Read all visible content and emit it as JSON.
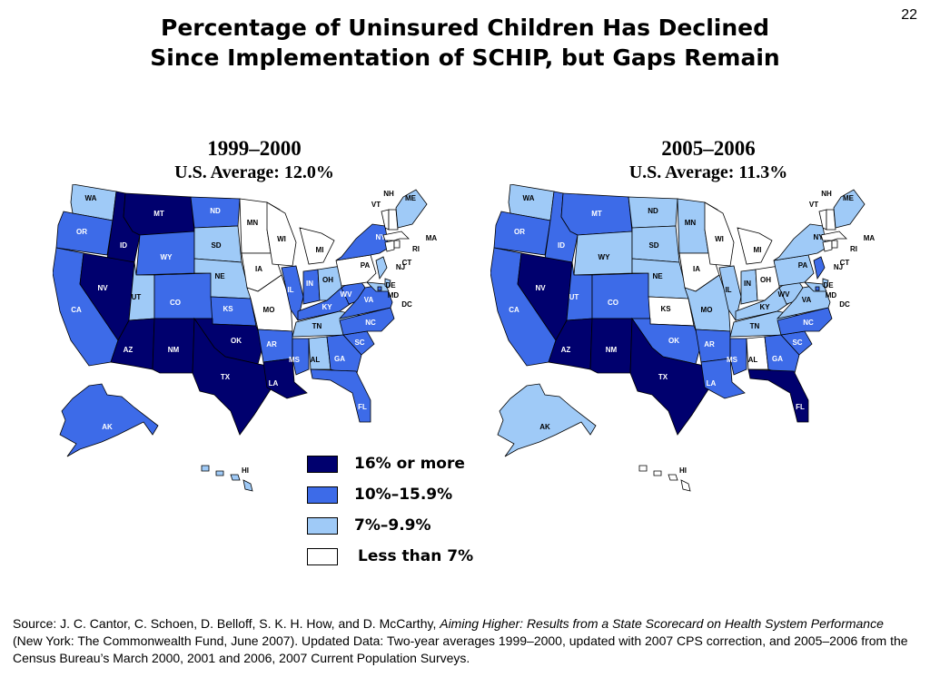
{
  "page_number": "22",
  "title": {
    "line1": "Percentage of Uninsured Children Has Declined",
    "line2": "Since Implementation of SCHIP, but Gaps Remain"
  },
  "colors": {
    "c16": "#00006e",
    "c10": "#3d6be8",
    "c7": "#9fcaf7",
    "c0": "#ffffff"
  },
  "legend": [
    {
      "key": "c16",
      "label": "16% or more"
    },
    {
      "key": "c10",
      "label": "10%–15.9%"
    },
    {
      "key": "c7",
      "label": "7%–9.9%"
    },
    {
      "key": "c0",
      "label": "Less than 7%"
    }
  ],
  "maps": [
    {
      "period": "1999–2000",
      "average": "U.S. Average: 12.0%",
      "states": {
        "WA": "c7",
        "OR": "c10",
        "CA": "c10",
        "ID": "c16",
        "NV": "c16",
        "MT": "c16",
        "WY": "c10",
        "UT": "c7",
        "AZ": "c16",
        "CO": "c10",
        "NM": "c16",
        "ND": "c10",
        "SD": "c7",
        "NE": "c7",
        "KS": "c10",
        "OK": "c16",
        "TX": "c16",
        "MN": "c0",
        "IA": "c0",
        "MO": "c0",
        "AR": "c10",
        "LA": "c16",
        "WI": "c0",
        "IL": "c10",
        "MS": "c10",
        "MI": "c0",
        "IN": "c10",
        "OH": "c7",
        "KY": "c10",
        "TN": "c7",
        "AL": "c7",
        "GA": "c10",
        "FL": "c10",
        "SC": "c10",
        "NC": "c10",
        "VA": "c10",
        "WV": "c10",
        "PA": "c0",
        "NY": "c10",
        "ME": "c7",
        "VT": "c0",
        "NH": "c0",
        "MA": "c0",
        "RI": "c0",
        "CT": "c0",
        "NJ": "c7",
        "DE": "c7",
        "MD": "c7",
        "DC": "c10",
        "AK": "c10",
        "HI": "c7"
      }
    },
    {
      "period": "2005–2006",
      "average": "U.S. Average: 11.3%",
      "states": {
        "WA": "c7",
        "OR": "c10",
        "CA": "c10",
        "ID": "c10",
        "NV": "c16",
        "MT": "c10",
        "WY": "c7",
        "UT": "c10",
        "AZ": "c16",
        "CO": "c10",
        "NM": "c16",
        "ND": "c7",
        "SD": "c7",
        "NE": "c7",
        "KS": "c0",
        "OK": "c10",
        "TX": "c16",
        "MN": "c7",
        "IA": "c0",
        "MO": "c7",
        "AR": "c10",
        "LA": "c10",
        "WI": "c0",
        "IL": "c7",
        "MS": "c10",
        "MI": "c0",
        "IN": "c7",
        "OH": "c0",
        "KY": "c7",
        "TN": "c7",
        "AL": "c0",
        "GA": "c10",
        "FL": "c16",
        "SC": "c10",
        "NC": "c10",
        "VA": "c7",
        "WV": "c7",
        "PA": "c7",
        "NY": "c7",
        "ME": "c7",
        "VT": "c0",
        "NH": "c0",
        "MA": "c0",
        "RI": "c0",
        "CT": "c0",
        "NJ": "c10",
        "DE": "c7",
        "MD": "c7",
        "DC": "c10",
        "AK": "c7",
        "HI": "c0"
      }
    }
  ],
  "source": {
    "prefix": "Source: J. C. Cantor, C. Schoen, D. Belloff, S. K. H. How, and D. McCarthy, ",
    "italic": "Aiming Higher: Results from a State Scorecard on Health System Performance",
    "suffix": " (New York: The Commonwealth Fund, June 2007). Updated Data: Two-year averages 1999–2000, updated with 2007 CPS correction, and 2005–2006 from the Census Bureau’s March 2000, 2001 and 2006, 2007 Current Population Surveys."
  }
}
